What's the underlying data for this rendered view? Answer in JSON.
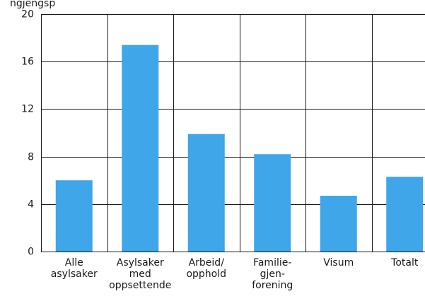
{
  "title_fragment": "ngjengsp",
  "chart_data": {
    "type": "bar",
    "categories": [
      [
        "Alle",
        "asylsaker"
      ],
      [
        "Asylsaker",
        "med",
        "oppsettende"
      ],
      [
        "Arbeid/",
        "opphold"
      ],
      [
        "Familie-",
        "gjen-",
        "forening"
      ],
      [
        "Visum"
      ],
      [
        "Totalt"
      ]
    ],
    "values": [
      6.0,
      17.4,
      9.9,
      8.2,
      4.7,
      6.3
    ],
    "ylim": [
      0,
      20
    ],
    "yticks": [
      0,
      4,
      8,
      12,
      16,
      20
    ],
    "grid": true,
    "bar_color": "#3ea6e9",
    "grid_color": "#1a1a1a"
  }
}
